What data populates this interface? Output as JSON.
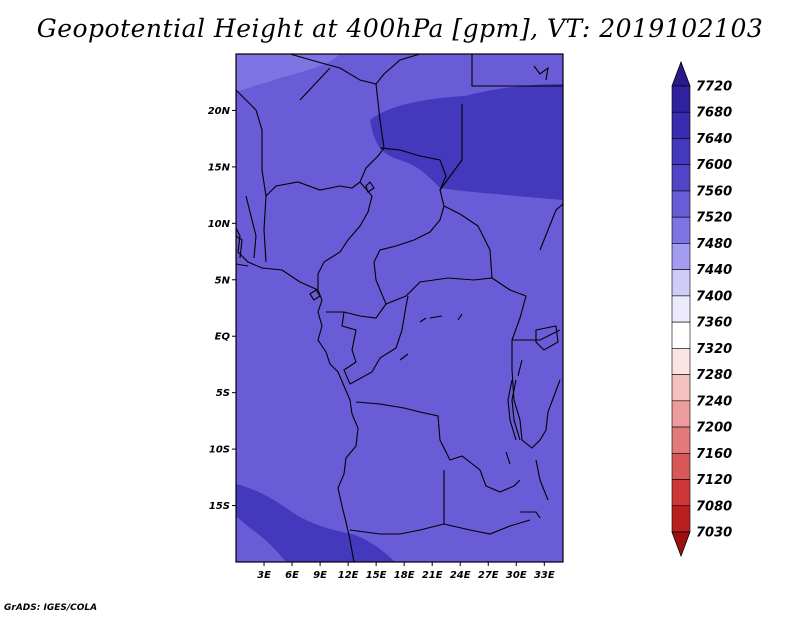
{
  "title": "Geopotential Height at 400hPa [gpm], VT: 2019102103",
  "footer": "GrADS: IGES/COLA",
  "map": {
    "lon_range": [
      0,
      35
    ],
    "lat_range": [
      -20,
      25
    ],
    "lat_ticks": [
      {
        "value": 20,
        "label": "20N"
      },
      {
        "value": 15,
        "label": "15N"
      },
      {
        "value": 10,
        "label": "10N"
      },
      {
        "value": 5,
        "label": "5N"
      },
      {
        "value": 0,
        "label": "EQ"
      },
      {
        "value": -5,
        "label": "5S"
      },
      {
        "value": -10,
        "label": "10S"
      },
      {
        "value": -15,
        "label": "15S"
      }
    ],
    "lon_ticks": [
      {
        "value": 3,
        "label": "3E"
      },
      {
        "value": 6,
        "label": "6E"
      },
      {
        "value": 9,
        "label": "9E"
      },
      {
        "value": 12,
        "label": "12E"
      },
      {
        "value": 15,
        "label": "15E"
      },
      {
        "value": 18,
        "label": "18E"
      },
      {
        "value": 21,
        "label": "21E"
      },
      {
        "value": 24,
        "label": "24E"
      },
      {
        "value": 27,
        "label": "27E"
      },
      {
        "value": 30,
        "label": "30E"
      },
      {
        "value": 33,
        "label": "33E"
      }
    ]
  },
  "colorbar": {
    "levels": [
      "7720",
      "7680",
      "7640",
      "7600",
      "7560",
      "7520",
      "7480",
      "7440",
      "7400",
      "7360",
      "7320",
      "7280",
      "7240",
      "7200",
      "7160",
      "7120",
      "7080",
      "7030"
    ],
    "colors": [
      "#2a1a8c",
      "#30229c",
      "#3a2cae",
      "#4438bd",
      "#5144c6",
      "#6a5cd6",
      "#7e74e4",
      "#a49cf0",
      "#cfccf8",
      "#eceafc",
      "#ffffff",
      "#fbe4e4",
      "#f4c0c0",
      "#ec9c9c",
      "#e27a7a",
      "#d85858",
      "#cc3838",
      "#b82020",
      "#9c1010"
    ]
  },
  "field_colors": {
    "base": "#6a5cd6",
    "low": "#4438bd",
    "high": "#7e74e4"
  }
}
